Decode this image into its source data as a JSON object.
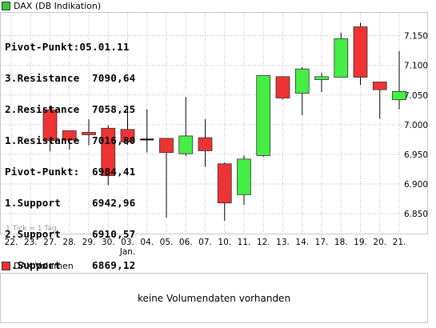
{
  "legend": {
    "label": "DAX (DB Indikation)",
    "color": "#33cc33"
  },
  "pivot_lines": [
    "Pivot-Punkt:05.01.11",
    "3.Resistance  7090,64",
    "2.Resistance  7058,25",
    "1.Resistance  7016,80",
    "Pivot-Punkt:  6984,41",
    "1.Support     6942,96",
    "2.Support     6910,57",
    "3.Support     6869,12"
  ],
  "tick_note": "1 Tick = 1 Tag",
  "volume": {
    "legend_label": "DAX Volumen",
    "legend_color": "#ee3333",
    "message": "keine Volumendaten vorhanden"
  },
  "colors": {
    "up": "#44ee44",
    "down": "#ee3333",
    "wick": "#000000",
    "grid": "#bbbbbb",
    "flat": "#000000"
  },
  "chart_data": {
    "type": "candlestick",
    "categories": [
      "22.",
      "23.",
      "27.",
      "28.",
      "29.",
      "30.",
      "03.",
      "04.",
      "05.",
      "06.",
      "07.",
      "10.",
      "11.",
      "12.",
      "13.",
      "14.",
      "17.",
      "18.",
      "19.",
      "20.",
      "21."
    ],
    "category_sublabels": {
      "03.": "Jan."
    },
    "ohlc": [
      null,
      null,
      {
        "open": 7025,
        "high": 7032,
        "low": 6955,
        "close": 6973
      },
      {
        "open": 6990,
        "high": 6990,
        "low": 6958,
        "close": 6974
      },
      {
        "open": 6987,
        "high": 7009,
        "low": 6965,
        "close": 6983
      },
      {
        "open": 6994,
        "high": 6999,
        "low": 6898,
        "close": 6914
      },
      {
        "open": 6992,
        "high": 7027,
        "low": 6966,
        "close": 6971
      },
      {
        "open": 6975,
        "high": 7026,
        "low": 6953,
        "close": 6975
      },
      {
        "open": 6977,
        "high": 6977,
        "low": 6843,
        "close": 6953
      },
      {
        "open": 6951,
        "high": 7047,
        "low": 6947,
        "close": 6981
      },
      {
        "open": 6978,
        "high": 7009,
        "low": 6929,
        "close": 6956
      },
      {
        "open": 6934,
        "high": 6936,
        "low": 6838,
        "close": 6868
      },
      {
        "open": 6882,
        "high": 6948,
        "low": 6865,
        "close": 6942
      },
      {
        "open": 6948,
        "high": 7083,
        "low": 6946,
        "close": 7083
      },
      {
        "open": 7081,
        "high": 7081,
        "low": 7043,
        "close": 7045
      },
      {
        "open": 7053,
        "high": 7097,
        "low": 7016,
        "close": 7094
      },
      {
        "open": 7076,
        "high": 7088,
        "low": 7055,
        "close": 7081
      },
      {
        "open": 7080,
        "high": 7155,
        "low": 7080,
        "close": 7145
      },
      {
        "open": 7165,
        "high": 7172,
        "low": 7067,
        "close": 7080
      },
      {
        "open": 7072,
        "high": 7072,
        "low": 7010,
        "close": 7059
      },
      {
        "open": 7042,
        "high": 7124,
        "low": 7026,
        "close": 7056
      }
    ],
    "y_ticks": [
      "7.150",
      "7.100",
      "7.050",
      "7.000",
      "6.950",
      "6.900",
      "6.850"
    ],
    "ylim": [
      6815,
      7190
    ],
    "grid": true
  }
}
